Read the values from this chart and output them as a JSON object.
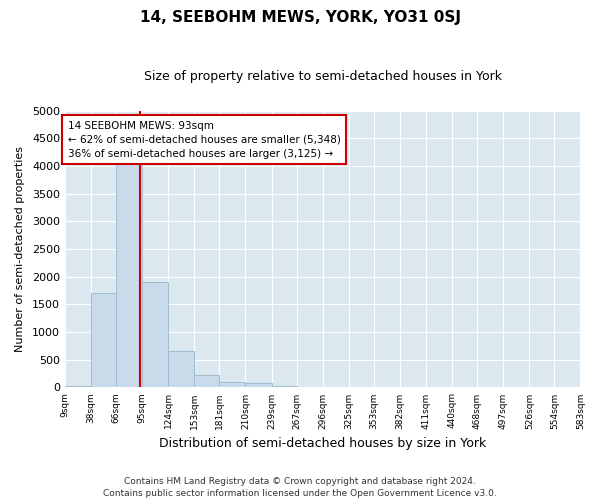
{
  "title": "14, SEEBOHM MEWS, YORK, YO31 0SJ",
  "subtitle": "Size of property relative to semi-detached houses in York",
  "xlabel": "Distribution of semi-detached houses by size in York",
  "ylabel": "Number of semi-detached properties",
  "bar_color": "#c9daea",
  "bar_edge_color": "#a0bcd0",
  "annotation_line1": "14 SEEBOHM MEWS: 93sqm",
  "annotation_line2": "← 62% of semi-detached houses are smaller (5,348)",
  "annotation_line3": "36% of semi-detached houses are larger (3,125) →",
  "property_line_x": 93,
  "ylim": [
    0,
    5000
  ],
  "bins": [
    9,
    38,
    66,
    95,
    124,
    153,
    181,
    210,
    239,
    267,
    296,
    325,
    353,
    382,
    411,
    440,
    468,
    497,
    526,
    554,
    583
  ],
  "bin_labels": [
    "9sqm",
    "38sqm",
    "66sqm",
    "95sqm",
    "124sqm",
    "153sqm",
    "181sqm",
    "210sqm",
    "239sqm",
    "267sqm",
    "296sqm",
    "325sqm",
    "353sqm",
    "382sqm",
    "411sqm",
    "440sqm",
    "468sqm",
    "497sqm",
    "526sqm",
    "554sqm",
    "583sqm"
  ],
  "values": [
    30,
    1700,
    4050,
    1900,
    650,
    220,
    90,
    80,
    20,
    5,
    2,
    1,
    0,
    0,
    0,
    0,
    0,
    0,
    0,
    0
  ],
  "footer_line1": "Contains HM Land Registry data © Crown copyright and database right 2024.",
  "footer_line2": "Contains public sector information licensed under the Open Government Licence v3.0.",
  "background_color": "#ffffff",
  "plot_bg_color": "#dce8f0",
  "grid_color": "#ffffff",
  "annotation_box_color": "#ffffff",
  "annotation_box_edge": "#cc0000",
  "property_line_color": "#cc0000",
  "title_fontsize": 11,
  "subtitle_fontsize": 9
}
